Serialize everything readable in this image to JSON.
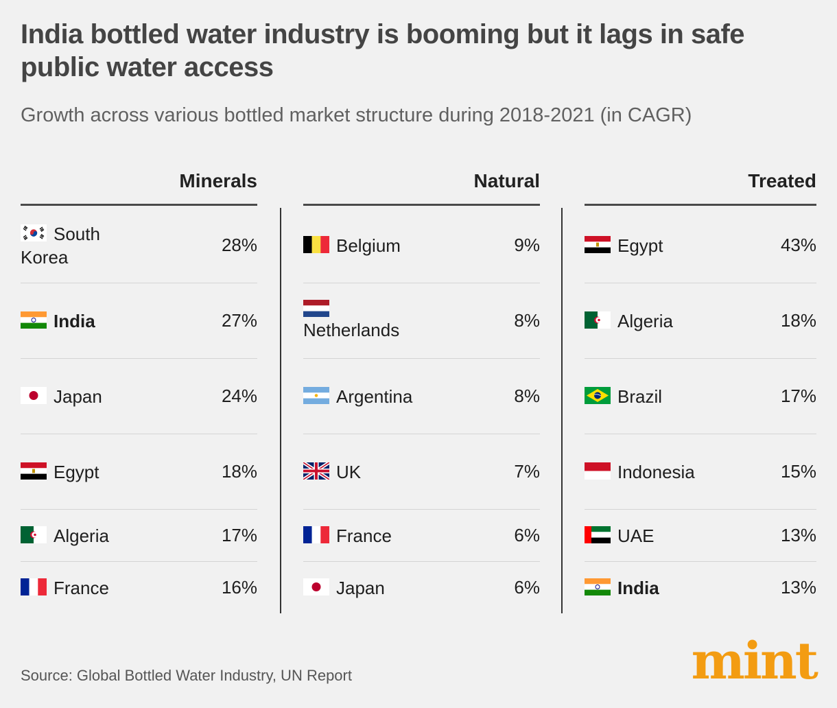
{
  "title": "India bottled water industry is booming but it lags in safe public water access",
  "subtitle": "Growth across various bottled market structure during 2018-2021 (in CAGR)",
  "source": "Source: Global Bottled Water Industry, UN Report",
  "logo": "mint",
  "colors": {
    "accent": "#f39c12",
    "title": "#444444",
    "background": "#f1f1f1"
  },
  "chart_data": {
    "type": "table",
    "columns": [
      {
        "name": "Minerals",
        "rows": [
          {
            "country": "South Korea",
            "value": "28%",
            "flag": "south-korea-flag-icon",
            "bold": false
          },
          {
            "country": "India",
            "value": "27%",
            "flag": "india-flag-icon",
            "bold": true
          },
          {
            "country": "Japan",
            "value": "24%",
            "flag": "japan-flag-icon",
            "bold": false
          },
          {
            "country": "Egypt",
            "value": "18%",
            "flag": "egypt-flag-icon",
            "bold": false
          },
          {
            "country": "Algeria",
            "value": "17%",
            "flag": "algeria-flag-icon",
            "bold": false
          },
          {
            "country": "France",
            "value": "16%",
            "flag": "france-flag-icon",
            "bold": false
          }
        ]
      },
      {
        "name": "Natural",
        "rows": [
          {
            "country": "Belgium",
            "value": "9%",
            "flag": "belgium-flag-icon",
            "bold": false
          },
          {
            "country": "Netherlands",
            "value": "8%",
            "flag": "netherlands-flag-icon",
            "bold": false
          },
          {
            "country": "Argentina",
            "value": "8%",
            "flag": "argentina-flag-icon",
            "bold": false
          },
          {
            "country": "UK",
            "value": "7%",
            "flag": "uk-flag-icon",
            "bold": false
          },
          {
            "country": "France",
            "value": "6%",
            "flag": "france-flag-icon",
            "bold": false
          },
          {
            "country": "Japan",
            "value": "6%",
            "flag": "japan-flag-icon",
            "bold": false
          }
        ]
      },
      {
        "name": "Treated",
        "rows": [
          {
            "country": "Egypt",
            "value": "43%",
            "flag": "egypt-flag-icon",
            "bold": false
          },
          {
            "country": "Algeria",
            "value": "18%",
            "flag": "algeria-flag-icon",
            "bold": false
          },
          {
            "country": "Brazil",
            "value": "17%",
            "flag": "brazil-flag-icon",
            "bold": false
          },
          {
            "country": "Indonesia",
            "value": "15%",
            "flag": "indonesia-flag-icon",
            "bold": false
          },
          {
            "country": "UAE",
            "value": "13%",
            "flag": "uae-flag-icon",
            "bold": false
          },
          {
            "country": "India",
            "value": "13%",
            "flag": "india-flag-icon",
            "bold": true
          }
        ]
      }
    ]
  }
}
